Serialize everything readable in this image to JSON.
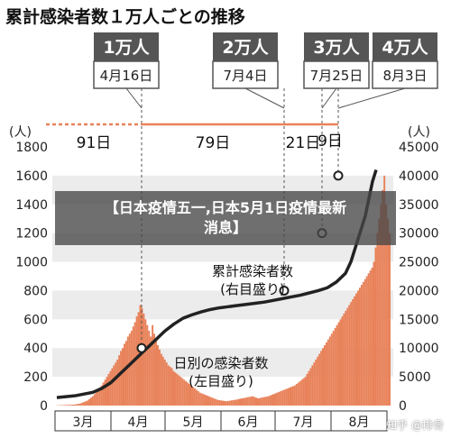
{
  "chart_data": {
    "type": "bar+line",
    "title": "累計感染者数１万人ごとの推移",
    "yleft": {
      "unit": "(人)",
      "ticks": [
        0,
        200,
        400,
        600,
        800,
        1000,
        1200,
        1400,
        1600,
        1800
      ],
      "range": [
        0,
        1800
      ]
    },
    "yright": {
      "unit": "(人)",
      "ticks": [
        0,
        5000,
        10000,
        15000,
        20000,
        25000,
        30000,
        35000,
        40000,
        45000
      ],
      "range": [
        0,
        45000
      ]
    },
    "months": [
      "3月",
      "4月",
      "5月",
      "6月",
      "7月",
      "8月"
    ],
    "milestones": [
      {
        "label": "1万人",
        "date": "4月16日",
        "cumulative": 10000
      },
      {
        "label": "2万人",
        "date": "7月4日",
        "cumulative": 20000
      },
      {
        "label": "3万人",
        "date": "7月25日",
        "cumulative": 30000
      },
      {
        "label": "4万人",
        "date": "8月3日",
        "cumulative": 40000
      }
    ],
    "intervals": [
      "91日",
      "79日",
      "21日",
      "9日"
    ],
    "series": [
      {
        "name": "日別の感染者数",
        "sublabel": "(左目盛り)",
        "axis": "left",
        "color": "#e8825a",
        "values": [
          2,
          2,
          3,
          3,
          4,
          4,
          5,
          5,
          6,
          6,
          8,
          10,
          12,
          15,
          20,
          25,
          30,
          35,
          45,
          55,
          65,
          80,
          95,
          110,
          125,
          140,
          160,
          180,
          200,
          220,
          240,
          260,
          280,
          300,
          320,
          350,
          380,
          400,
          430,
          450,
          480,
          500,
          520,
          550,
          580,
          620,
          650,
          700,
          680,
          640,
          600,
          560,
          520,
          480,
          560,
          500,
          460,
          420,
          390,
          360,
          340,
          320,
          300,
          280,
          270,
          260,
          240,
          230,
          220,
          210,
          200,
          190,
          180,
          170,
          160,
          150,
          140,
          130,
          120,
          110,
          100,
          90,
          85,
          80,
          75,
          70,
          65,
          60,
          55,
          50,
          45,
          40,
          38,
          36,
          34,
          32,
          30,
          32,
          34,
          36,
          38,
          40,
          42,
          45,
          48,
          50,
          52,
          55,
          58,
          60,
          62,
          65,
          60,
          55,
          50,
          52,
          55,
          58,
          60,
          62,
          65,
          70,
          75,
          80,
          85,
          90,
          95,
          100,
          105,
          110,
          115,
          120,
          125,
          130,
          135,
          140,
          150,
          160,
          170,
          180,
          190,
          200,
          220,
          240,
          260,
          280,
          300,
          320,
          340,
          360,
          380,
          400,
          420,
          440,
          460,
          480,
          500,
          520,
          540,
          560,
          580,
          600,
          620,
          640,
          660,
          680,
          700,
          720,
          740,
          760,
          780,
          800,
          820,
          840,
          860,
          880,
          900,
          920,
          940,
          960,
          1000,
          1100,
          1200,
          1300,
          1400,
          1500,
          1600,
          1400,
          1300,
          1200
        ]
      },
      {
        "name": "累計感染者数",
        "sublabel": "(右目盛り)",
        "axis": "right",
        "color": "#222222",
        "x": [
          0,
          10,
          20,
          25,
          30,
          35,
          40,
          45,
          50,
          55,
          60,
          65,
          70,
          75,
          80,
          85,
          90,
          95,
          100,
          105,
          110,
          115,
          120,
          125,
          130,
          135,
          140,
          145,
          150,
          155,
          160,
          163,
          165,
          167,
          169,
          171,
          173,
          175,
          177
        ],
        "values": [
          1400,
          1700,
          2300,
          3000,
          4000,
          5500,
          7000,
          8500,
          10000,
          11500,
          13000,
          14200,
          15200,
          15800,
          16300,
          16700,
          17000,
          17200,
          17400,
          17600,
          17800,
          18000,
          18300,
          18600,
          18900,
          19200,
          19600,
          20000,
          20500,
          21500,
          23000,
          25000,
          27000,
          29000,
          31000,
          33000,
          36000,
          39000,
          41000
        ]
      }
    ]
  },
  "overlay": {
    "line1": "【日本疫情五一,日本5月1日疫情最新",
    "line2": "消息】"
  },
  "watermark": "知乎 @排骨"
}
